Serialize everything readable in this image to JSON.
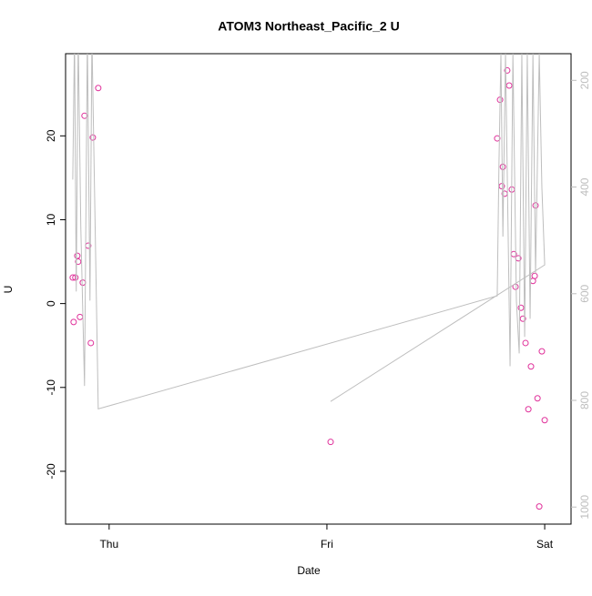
{
  "chart_data": {
    "type": "scatter",
    "title": "ATOM3 Northeast_Pacific_2 U",
    "xlabel": "Date",
    "ylabel": "U",
    "xlim": [
      -0.2,
      2.121
    ],
    "xticks": [
      {
        "value": 0,
        "label": "Thu"
      },
      {
        "value": 1,
        "label": "Fri"
      },
      {
        "value": 2,
        "label": "Sat"
      }
    ],
    "ylim": [
      -26.3,
      29.8
    ],
    "yticks": [
      -20,
      -10,
      0,
      10,
      20
    ],
    "y2lim": [
      1032,
      150
    ],
    "y2ticks": [
      200,
      400,
      600,
      800,
      1000
    ],
    "series": [
      {
        "type": "scatter",
        "color": "#e0309a",
        "x": [
          -0.167,
          -0.163,
          -0.155,
          -0.146,
          -0.142,
          -0.134,
          -0.121,
          -0.113,
          -0.096,
          -0.084,
          -0.075,
          -0.05,
          1.017,
          1.782,
          1.795,
          1.803,
          1.808,
          1.816,
          1.828,
          1.837,
          1.849,
          1.858,
          1.866,
          1.879,
          1.891,
          1.9,
          1.912,
          1.925,
          1.937,
          1.946,
          1.954,
          1.958,
          1.967,
          1.975,
          1.987,
          2.0
        ],
        "values": [
          3.1,
          -2.2,
          3.1,
          5.7,
          5.0,
          -1.6,
          2.5,
          22.4,
          6.9,
          -4.7,
          19.8,
          25.7,
          -16.5,
          19.7,
          24.3,
          14.0,
          16.3,
          13.1,
          27.8,
          26.0,
          13.6,
          5.9,
          2.0,
          5.4,
          -0.5,
          -1.8,
          -4.7,
          -12.6,
          -7.5,
          2.7,
          3.3,
          11.7,
          -11.3,
          -24.2,
          -5.7,
          -13.9
        ]
      },
      {
        "type": "line",
        "axis": "y2",
        "color": "#bebebe",
        "x": [
          -0.167,
          -0.159,
          -0.151,
          -0.142,
          -0.13,
          -0.113,
          -0.1,
          -0.088,
          -0.079,
          -0.05,
          1.782,
          1.79,
          1.799,
          1.808,
          1.82,
          1.841,
          1.854,
          1.87,
          1.883,
          1.895,
          1.908,
          1.92,
          1.933,
          1.946,
          1.958,
          1.975,
          1.987,
          2.0,
          1.017
        ],
        "values": [
          386,
          118,
          596,
          118,
          476,
          773,
          118,
          613,
          118,
          816,
          604,
          357,
          150,
          493,
          150,
          736,
          150,
          613,
          712,
          150,
          681,
          150,
          647,
          150,
          562,
          150,
          400,
          546,
          802
        ]
      }
    ]
  }
}
